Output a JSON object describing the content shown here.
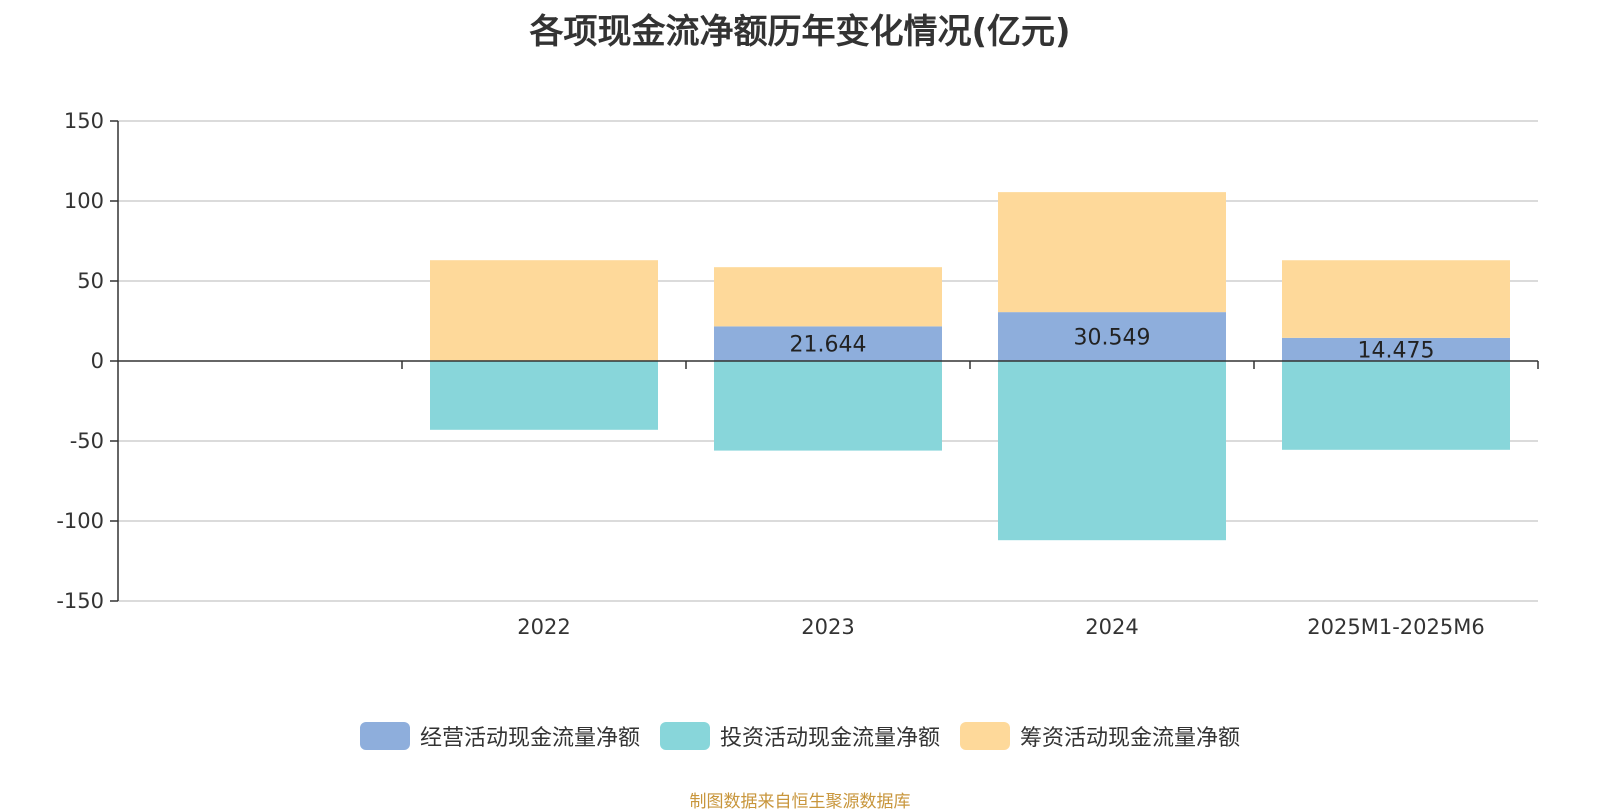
{
  "chart_data": {
    "type": "bar",
    "stacked": true,
    "title": "各项现金流净额历年变化情况(亿元)",
    "categories": [
      "2022",
      "2023",
      "2024",
      "2025M1-2025M6"
    ],
    "ylim": [
      -150,
      150
    ],
    "yticks": [
      150,
      100,
      50,
      0,
      -50,
      -100,
      -150
    ],
    "ytick_labels": [
      "150",
      "100",
      "50",
      "0",
      "-50",
      "-100",
      "-150"
    ],
    "grid": true,
    "legend_position": "bottom",
    "series": [
      {
        "name": "经营活动现金流量净额",
        "color": "#8eaedc",
        "values": [
          0,
          21.644,
          30.549,
          14.475
        ],
        "labels": [
          "",
          "21.644",
          "30.549",
          "14.475"
        ]
      },
      {
        "name": "投资活动现金流量净额",
        "color": "#88d6da",
        "values": [
          -43,
          -56,
          -112,
          -55.5
        ],
        "labels": [
          "",
          "",
          "",
          ""
        ]
      },
      {
        "name": "筹资活动现金流量净额",
        "color": "#fed99a",
        "values": [
          63,
          37,
          75,
          48.5
        ],
        "labels": [
          "",
          "",
          "",
          ""
        ]
      }
    ]
  },
  "source": "制图数据来自恒生聚源数据库"
}
